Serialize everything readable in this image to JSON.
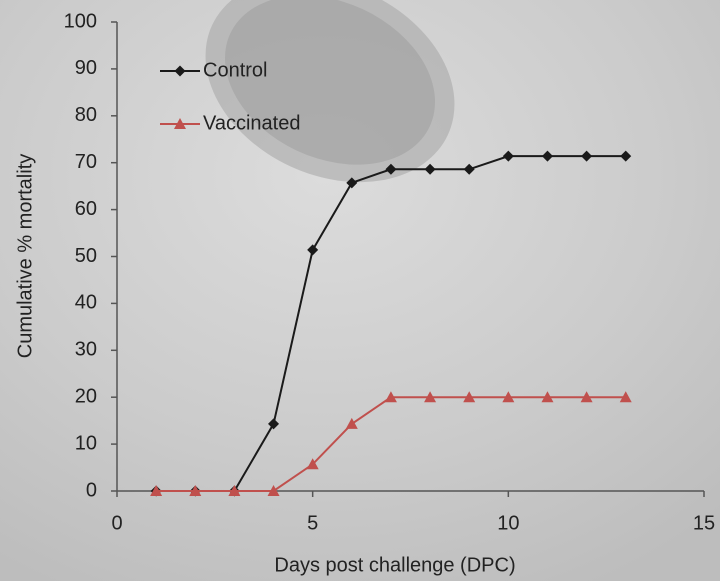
{
  "chart_data": {
    "type": "line",
    "x_label": "Days post challenge (DPC)",
    "y_label": "Cumulative % mortality",
    "xlim": [
      0,
      15
    ],
    "xticks": [
      0,
      5,
      10,
      15
    ],
    "ylim": [
      0,
      100
    ],
    "yticks": [
      0,
      10,
      20,
      30,
      40,
      50,
      60,
      70,
      80,
      90,
      100
    ],
    "grid": false,
    "legend": "upper left",
    "x": [
      1,
      2,
      3,
      4,
      5,
      6,
      7,
      8,
      9,
      10,
      11,
      12,
      13
    ],
    "series": [
      {
        "name": "Control",
        "color": "#1a1a1a",
        "marker": "diamond",
        "values": [
          0,
          0,
          0,
          14.3,
          51.4,
          65.7,
          68.6,
          68.6,
          68.6,
          71.4,
          71.4,
          71.4,
          71.4
        ]
      },
      {
        "name": "Vaccinated",
        "color": "#c0504d",
        "marker": "triangle",
        "values": [
          0,
          0,
          0,
          0,
          5.7,
          14.3,
          20,
          20,
          20,
          20,
          20,
          20,
          20
        ]
      }
    ]
  }
}
